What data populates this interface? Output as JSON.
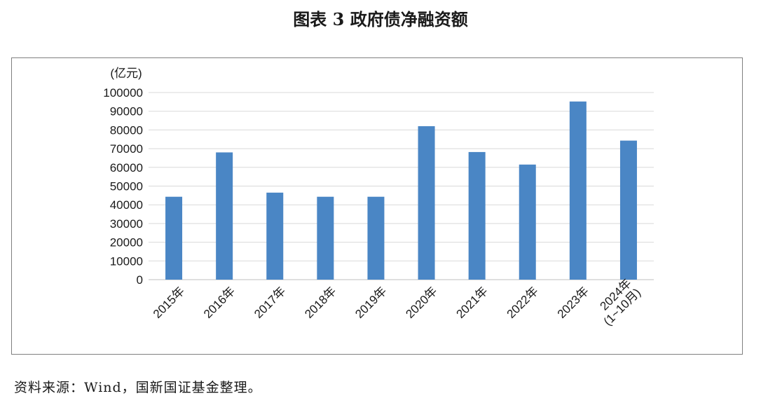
{
  "figure": {
    "title": "图表 3  政府债净融资额",
    "source": "资料来源：Wind，国新国证基金整理。"
  },
  "chart_data": {
    "type": "bar",
    "ylabel": "(亿元)",
    "ylim": [
      0,
      100000
    ],
    "yticks": [
      0,
      10000,
      20000,
      30000,
      40000,
      50000,
      60000,
      70000,
      80000,
      90000,
      100000
    ],
    "grid": true,
    "categories": [
      "2015年",
      "2016年",
      "2017年",
      "2018年",
      "2019年",
      "2020年",
      "2021年",
      "2022年",
      "2023年",
      "2024年(1~10月)"
    ],
    "category_lines": [
      [
        "2015年"
      ],
      [
        "2016年"
      ],
      [
        "2017年"
      ],
      [
        "2018年"
      ],
      [
        "2019年"
      ],
      [
        "2020年"
      ],
      [
        "2021年"
      ],
      [
        "2022年"
      ],
      [
        "2023年"
      ],
      [
        "2024年",
        "(1~10月)"
      ]
    ],
    "values": [
      44300,
      68000,
      46500,
      44300,
      44300,
      82000,
      68200,
      61500,
      95200,
      74300
    ],
    "bar_color": "#4a86c5",
    "grid_color": "#d9d9d9"
  }
}
